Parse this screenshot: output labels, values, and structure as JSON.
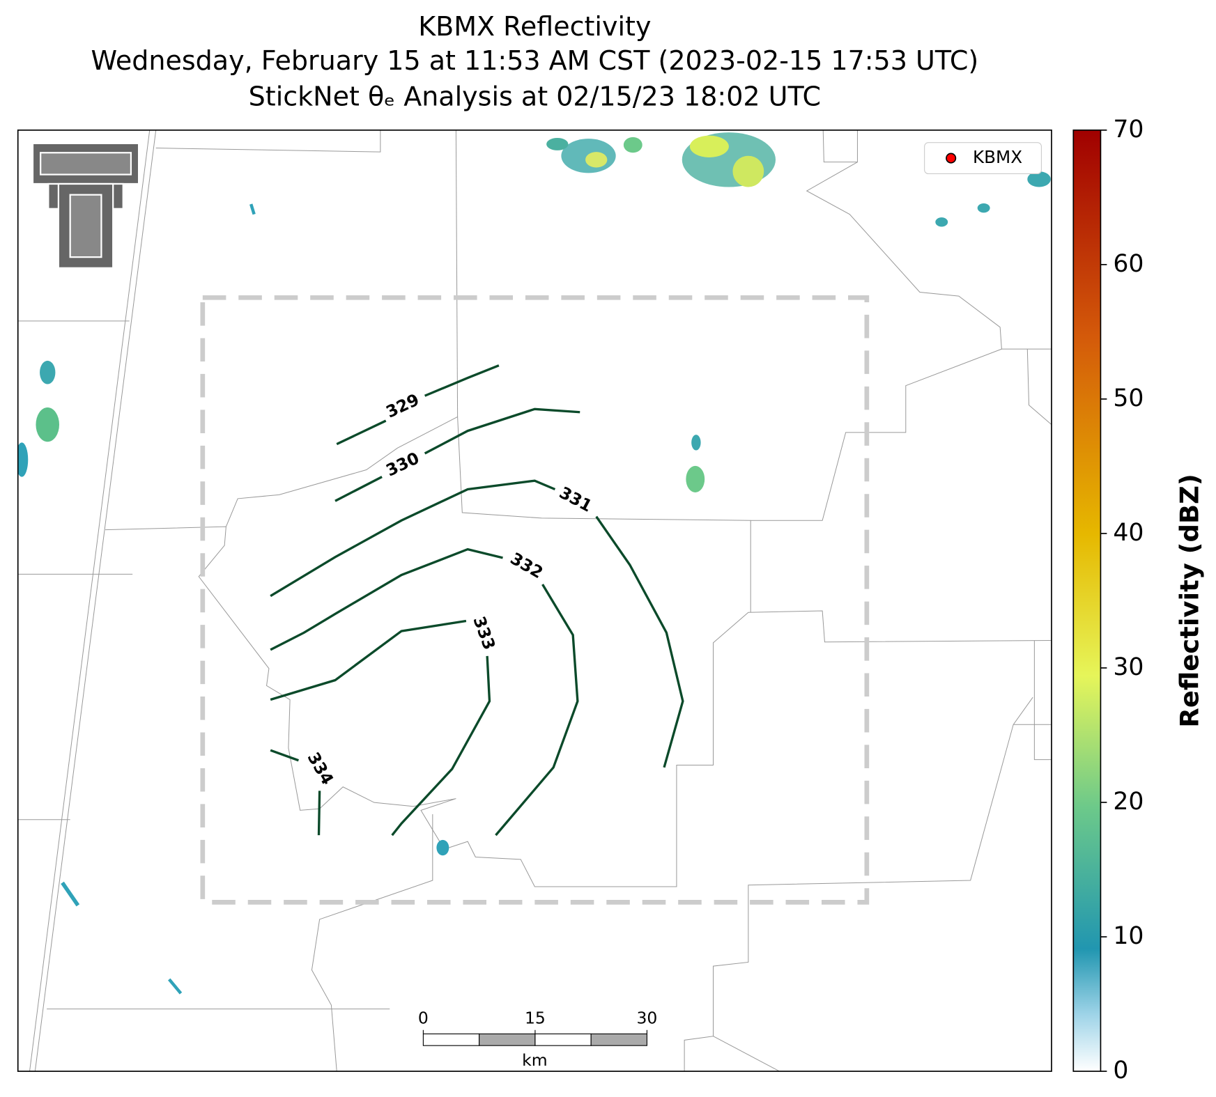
{
  "title": [
    "KBMX Reflectivity",
    "Wednesday, February 15 at 11:53 AM CST (2023-02-15 17:53 UTC)",
    "StickNet θₑ Analysis at 02/15/23 18:02 UTC"
  ],
  "legend": {
    "label": "KBMX",
    "color": "#ff0000"
  },
  "colorbar": {
    "label": "Reflectivity (dBZ)",
    "range": [
      0,
      70
    ],
    "ticks": [
      0,
      10,
      20,
      30,
      40,
      50,
      60,
      70
    ]
  },
  "contours": {
    "levels": [
      329,
      330,
      331,
      332,
      333,
      334
    ],
    "color": "#0b4a2a"
  },
  "scale_bar": {
    "ticks": [
      0,
      15,
      30
    ],
    "unit": "km"
  }
}
